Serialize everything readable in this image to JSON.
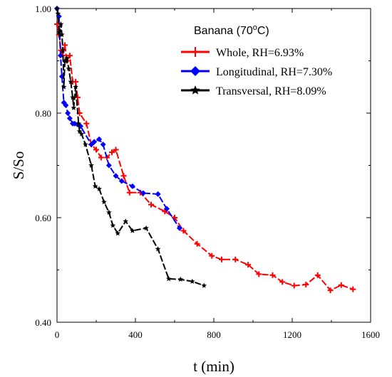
{
  "chart_data": {
    "type": "line",
    "title": "",
    "xlabel": "t (min)",
    "ylabel": "S/So",
    "xlim": [
      0,
      1600
    ],
    "ylim": [
      0.4,
      1.0
    ],
    "xticks": [
      0,
      400,
      800,
      1200,
      1600
    ],
    "xtick_labels": [
      "0",
      "400",
      "800",
      "1200",
      "1600"
    ],
    "yticks": [
      0.4,
      0.6,
      0.8,
      1.0
    ],
    "ytick_labels": [
      "0.40",
      "0.60",
      "0.80",
      "1.00"
    ],
    "grid": false,
    "legend": {
      "title_prefix": "Banana (70",
      "title_sup": "o",
      "title_suffix": "C)",
      "placement": "top-right"
    },
    "series": [
      {
        "name": "Whole, RH=6.93%",
        "color": "#ff0000",
        "marker": "plus",
        "x": [
          0,
          10,
          20,
          30,
          40,
          50,
          65,
          80,
          95,
          105,
          115,
          150,
          175,
          200,
          225,
          255,
          280,
          300,
          340,
          370,
          425,
          480,
          550,
          600,
          645,
          715,
          790,
          840,
          910,
          975,
          1030,
          1100,
          1150,
          1210,
          1270,
          1330,
          1395,
          1450,
          1510
        ],
        "y": [
          0.97,
          0.95,
          0.92,
          0.91,
          0.93,
          0.9,
          0.91,
          0.86,
          0.86,
          0.83,
          0.8,
          0.78,
          0.74,
          0.73,
          0.715,
          0.715,
          0.725,
          0.73,
          0.68,
          0.648,
          0.648,
          0.625,
          0.612,
          0.6,
          0.575,
          0.55,
          0.527,
          0.52,
          0.52,
          0.51,
          0.492,
          0.49,
          0.477,
          0.47,
          0.472,
          0.49,
          0.461,
          0.471,
          0.463
        ]
      },
      {
        "name": "Longitudinal, RH=7.30%",
        "color": "#0000ff",
        "marker": "diamond",
        "x": [
          0,
          10,
          18,
          25,
          35,
          45,
          55,
          65,
          80,
          90,
          105,
          120,
          175,
          190,
          215,
          235,
          265,
          300,
          330,
          385,
          440,
          515,
          560,
          625
        ],
        "y": [
          1.0,
          0.985,
          0.91,
          0.87,
          0.82,
          0.815,
          0.8,
          0.79,
          0.78,
          0.78,
          0.778,
          0.775,
          0.74,
          0.745,
          0.75,
          0.74,
          0.7,
          0.68,
          0.67,
          0.66,
          0.647,
          0.645,
          0.617,
          0.58
        ]
      },
      {
        "name": "Transversal, RH=8.09%",
        "color": "#000000",
        "marker": "star",
        "x": [
          0,
          5,
          10,
          15,
          20,
          25,
          30,
          35,
          40,
          45,
          50,
          60,
          70,
          80,
          85,
          95,
          110,
          115,
          125,
          145,
          175,
          195,
          215,
          240,
          265,
          285,
          310,
          350,
          385,
          455,
          515,
          570,
          630,
          690,
          750
        ],
        "y": [
          1.0,
          0.99,
          0.955,
          0.95,
          0.97,
          0.95,
          0.92,
          0.85,
          0.9,
          0.9,
          0.905,
          0.885,
          0.86,
          0.83,
          0.81,
          0.85,
          0.78,
          0.765,
          0.76,
          0.74,
          0.7,
          0.66,
          0.655,
          0.63,
          0.61,
          0.585,
          0.57,
          0.593,
          0.575,
          0.58,
          0.54,
          0.483,
          0.482,
          0.478,
          0.47
        ]
      }
    ]
  }
}
